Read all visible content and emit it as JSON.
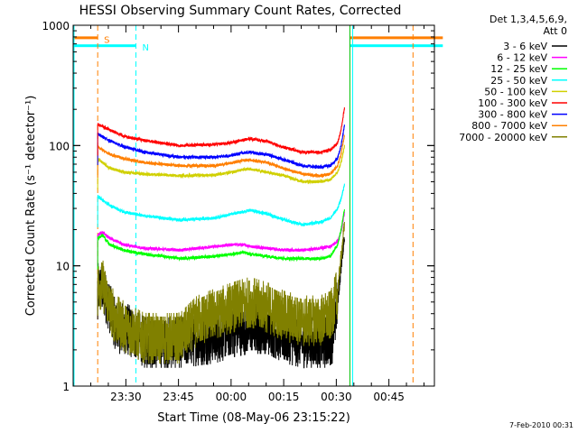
{
  "chart_data": {
    "type": "line",
    "title": "HESSI Observing Summary Count Rates, Corrected",
    "xlabel": "Start Time (08-May-06 23:15:22)",
    "ylabel": "Corrected Count Rate (s⁻¹ detector⁻¹)",
    "y_scale": "log",
    "ylim": [
      1,
      1000
    ],
    "xlim": [
      "23:15:22",
      "00:58:00"
    ],
    "x_ticks": [
      "23:30",
      "23:45",
      "00:00",
      "00:15",
      "00:30",
      "00:45"
    ],
    "y_ticks": [
      "1",
      "10",
      "100",
      "1000"
    ],
    "x_unit": "minutes after 23:15:22",
    "legend_header": [
      "Det 1,3,4,5,6,9,",
      "Att 0"
    ],
    "legend_position": "right, outside plot",
    "footer": "7-Feb-2010 00:31",
    "annotations": [
      {
        "label": "S",
        "type": "SAA",
        "color": "#ff7f00",
        "y": 780,
        "segments": [
          [
            -0.4,
            6.6
          ],
          [
            78.5,
            105
          ]
        ]
      },
      {
        "label": "N",
        "type": "Night",
        "color": "#00ffff",
        "y": 670,
        "segments": [
          [
            -0.4,
            17.5
          ],
          [
            78.5,
            105
          ]
        ]
      }
    ],
    "markers": [
      {
        "x": 6.6,
        "color": "#ff7f00",
        "style": "dashed"
      },
      {
        "x": 17.5,
        "color": "#00ffff",
        "style": "dashed"
      },
      {
        "x": 78.5,
        "color": "#00c000",
        "style": "solid"
      },
      {
        "x": 79.3,
        "color": "#00ffff",
        "style": "solid"
      },
      {
        "x": 96.5,
        "color": "#ff7f00",
        "style": "dashed"
      }
    ],
    "series": [
      {
        "name": "3 - 6 keV",
        "color": "#000000",
        "x": [
          6.6,
          8,
          10,
          12,
          15,
          20,
          30,
          40,
          45,
          50,
          55,
          60,
          65,
          70,
          72,
          73.5,
          75,
          76,
          77
        ],
        "y": [
          6.5,
          6.5,
          4.5,
          3.0,
          3.0,
          2.3,
          2.3,
          2.5,
          2.8,
          3.0,
          3.0,
          2.5,
          2.3,
          2.3,
          2.3,
          2.5,
          5,
          10,
          19
        ]
      },
      {
        "name": "6 - 12 keV",
        "color": "#ff00ff",
        "x": [
          6.6,
          8,
          10,
          14,
          20,
          30,
          40,
          45,
          48,
          50,
          55,
          60,
          65,
          70,
          73,
          75,
          76,
          77
        ],
        "y": [
          18,
          19,
          17,
          15,
          14,
          13.5,
          14.5,
          15,
          15,
          14.5,
          14,
          13.5,
          13.5,
          14,
          14.5,
          16,
          19,
          28
        ]
      },
      {
        "name": "12 - 25 keV",
        "color": "#00ff00",
        "x": [
          6.6,
          8,
          10,
          14,
          20,
          30,
          40,
          45,
          48,
          50,
          55,
          60,
          65,
          70,
          73,
          75,
          76,
          77
        ],
        "y": [
          17,
          18,
          15,
          13.5,
          12.5,
          11.5,
          12,
          12.5,
          13,
          12.5,
          12,
          11.5,
          11.5,
          11.5,
          12,
          15,
          20,
          30
        ]
      },
      {
        "name": "25 - 50 keV",
        "color": "#00ffff",
        "x": [
          6.6,
          8,
          10,
          14,
          20,
          30,
          40,
          45,
          48,
          50,
          55,
          60,
          65,
          70,
          73,
          75,
          76,
          77
        ],
        "y": [
          38,
          35,
          32,
          28,
          26,
          24,
          25,
          27,
          28,
          29,
          27,
          24,
          22,
          23,
          25,
          30,
          36,
          48
        ]
      },
      {
        "name": "50 - 100 keV",
        "color": "#d0d000",
        "x": [
          6.6,
          8,
          10,
          14,
          20,
          30,
          40,
          45,
          48,
          50,
          55,
          60,
          65,
          70,
          73,
          75,
          76,
          77
        ],
        "y": [
          78,
          72,
          65,
          60,
          58,
          56,
          57,
          60,
          63,
          64,
          60,
          56,
          50,
          50,
          52,
          60,
          72,
          100
        ]
      },
      {
        "name": "100 - 300 keV",
        "color": "#ff0000",
        "x": [
          6.6,
          8,
          10,
          14,
          20,
          30,
          40,
          45,
          48,
          50,
          55,
          60,
          65,
          70,
          73,
          75,
          76,
          77
        ],
        "y": [
          150,
          145,
          135,
          120,
          110,
          100,
          102,
          106,
          112,
          114,
          108,
          96,
          88,
          88,
          92,
          105,
          135,
          210
        ]
      },
      {
        "name": "300 - 800 keV",
        "color": "#0000ff",
        "x": [
          6.6,
          8,
          10,
          14,
          20,
          30,
          40,
          45,
          48,
          50,
          55,
          60,
          65,
          70,
          73,
          75,
          76,
          77
        ],
        "y": [
          125,
          118,
          110,
          98,
          88,
          80,
          80,
          83,
          87,
          88,
          84,
          76,
          68,
          66,
          68,
          78,
          100,
          150
        ]
      },
      {
        "name": "800 - 7000 keV",
        "color": "#ff7f00",
        "x": [
          6.6,
          8,
          10,
          14,
          20,
          30,
          40,
          45,
          48,
          50,
          55,
          60,
          65,
          70,
          73,
          75,
          76,
          77
        ],
        "y": [
          98,
          92,
          85,
          78,
          72,
          68,
          68,
          72,
          75,
          76,
          72,
          64,
          58,
          56,
          58,
          68,
          85,
          125
        ]
      },
      {
        "name": "7000 - 20000 keV",
        "color": "#808000",
        "x": [
          6.6,
          8,
          10,
          12,
          15,
          20,
          30,
          35,
          40,
          45,
          50,
          55,
          60,
          65,
          70,
          73,
          75,
          76,
          77
        ],
        "y": [
          7,
          7,
          4.5,
          3.5,
          3,
          2.5,
          2.5,
          3.5,
          4,
          4.5,
          5,
          4.5,
          3.8,
          3.5,
          3.5,
          3.8,
          6,
          12,
          22
        ]
      }
    ]
  }
}
